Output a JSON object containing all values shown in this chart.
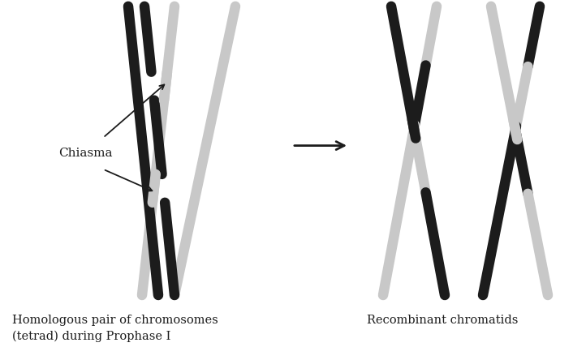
{
  "bg_color": "#ffffff",
  "dark_color": "#1c1c1c",
  "light_color": "#c8c8c8",
  "line_width": 9,
  "title1": "Homologous pair of chromosomes\n(tetrad) during Prophase I",
  "title2": "Recombinant chromatids",
  "chiasma_label": "Chiasma",
  "arrow_color": "#1c1c1c",
  "fig_w": 7.22,
  "fig_h": 4.28,
  "dpi": 100
}
